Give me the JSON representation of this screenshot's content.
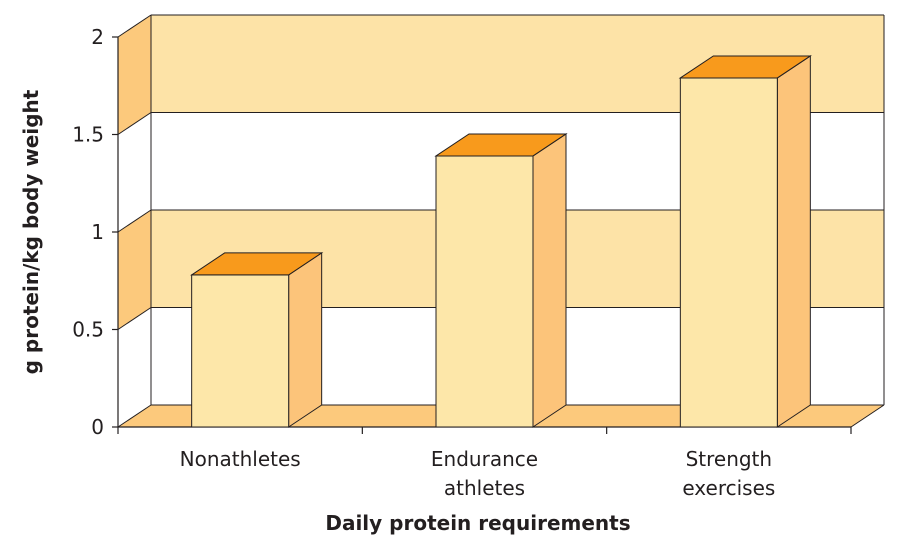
{
  "chart_data": {
    "type": "bar",
    "title": "",
    "xlabel": "Daily protein requirements",
    "ylabel": "g protein/kg body weight",
    "categories": [
      [
        "Nonathletes"
      ],
      [
        "Endurance",
        "athletes"
      ],
      [
        "Strength",
        "exercises"
      ]
    ],
    "values": [
      0.78,
      1.39,
      1.79
    ],
    "ylim": [
      0,
      2
    ],
    "yticks": [
      "0",
      "0.5",
      "1",
      "1.5",
      "2"
    ],
    "ytick_values": [
      0,
      0.5,
      1,
      1.5,
      2
    ],
    "grid": true,
    "legend": "none",
    "colors": {
      "band": "#fde3a7",
      "band_side": "#fcc97c",
      "bar_front": "#fde7a9",
      "bar_side": "#fcc47a",
      "bar_top": "#f89a1c",
      "outline": "#231f20",
      "floor": "#fcc97c"
    }
  }
}
